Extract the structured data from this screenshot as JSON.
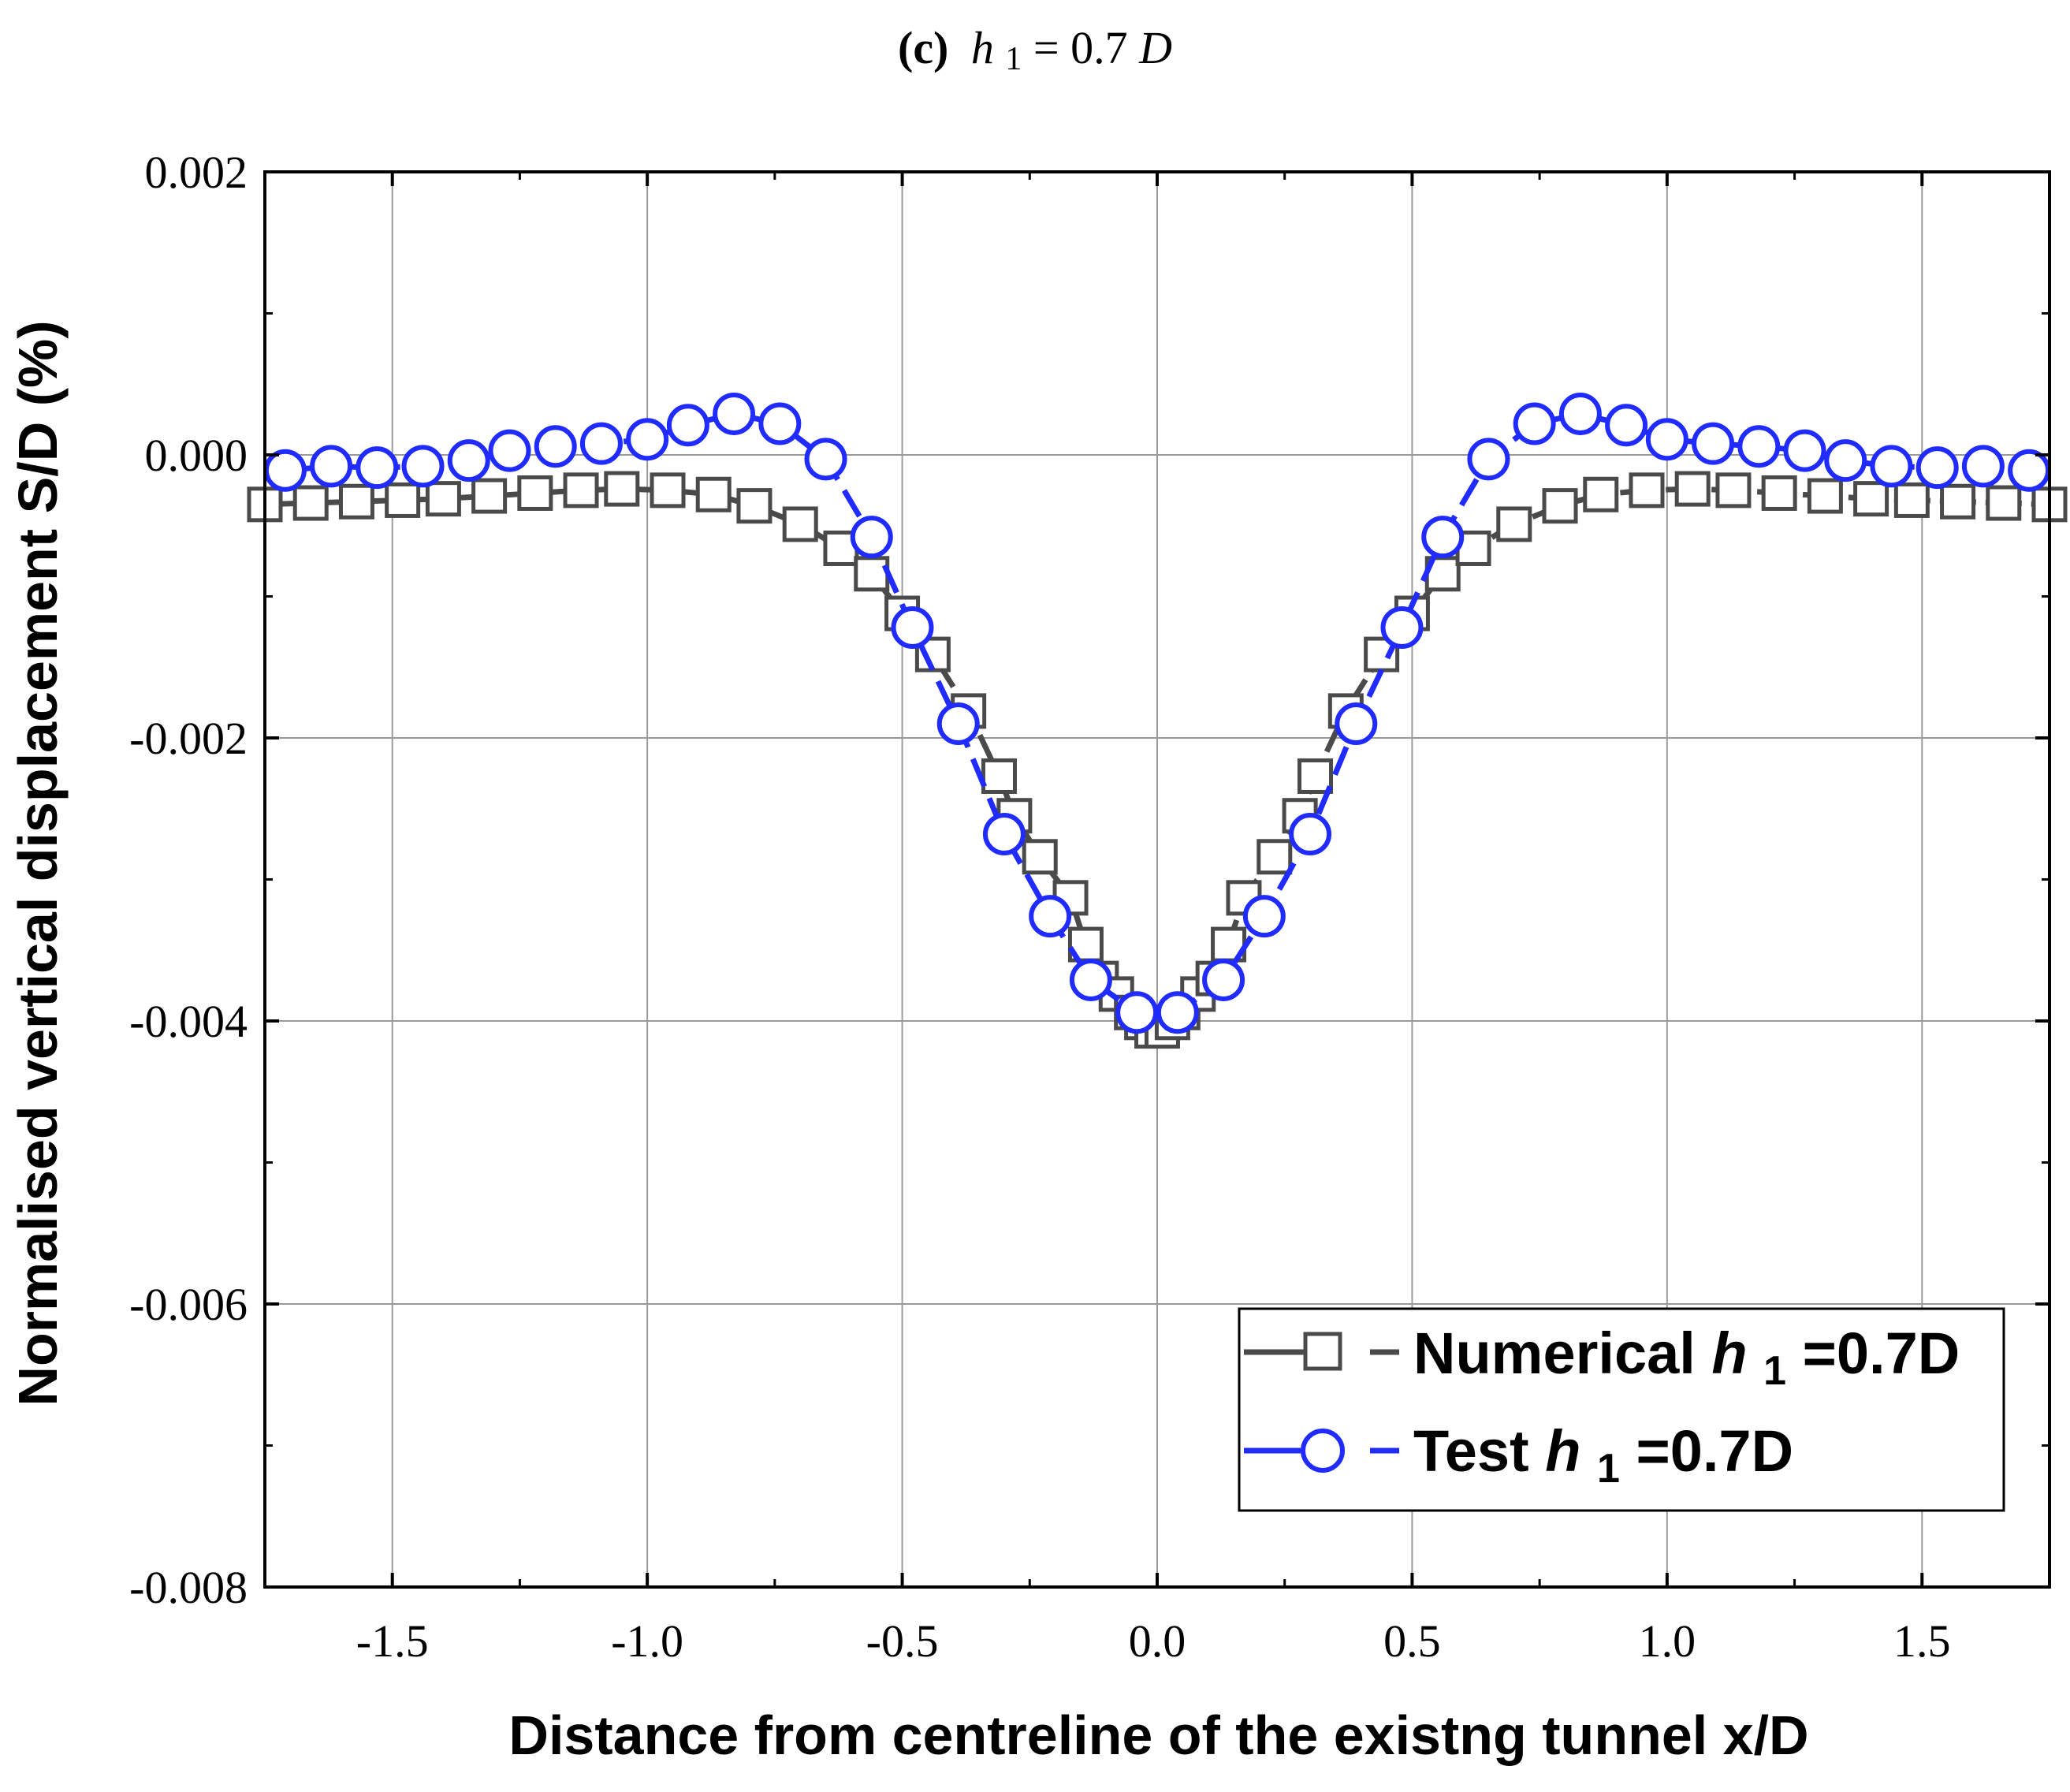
{
  "chart_data": {
    "type": "line",
    "title": {
      "label": "(c)",
      "variable": "h",
      "subscript": "1",
      "equals": " = 0.7",
      "unit": "D"
    },
    "xlabel": "Distance from centreline of the existng tunnel x/D",
    "ylabel": "Normalised vertical displacement S/D (%)",
    "xlim": [
      -1.75,
      1.75
    ],
    "ylim": [
      -0.008,
      0.002
    ],
    "xticks": [
      -1.5,
      -1.0,
      -0.5,
      0.0,
      0.5,
      1.0,
      1.5
    ],
    "xtick_labels": [
      "-1.5",
      "-1.0",
      "-0.5",
      "0.0",
      "0.5",
      "1.0",
      "1.5"
    ],
    "yticks": [
      0.002,
      0.0,
      -0.002,
      -0.004,
      -0.006,
      -0.008
    ],
    "ytick_labels": [
      "0.002",
      "0.000",
      "-0.002",
      "-0.004",
      "-0.006",
      "-0.008"
    ],
    "grid": true,
    "legend_position": "bottom-right",
    "series": [
      {
        "name": "Numerical",
        "legend_prefix": "Numerical ",
        "legend_var": "h",
        "legend_sub": "1",
        "legend_suffix": "=0.7D",
        "marker": "square",
        "color": "#4a4a4a",
        "x": [
          -1.75,
          -1.66,
          -1.57,
          -1.48,
          -1.4,
          -1.31,
          -1.22,
          -1.13,
          -1.05,
          -0.96,
          -0.87,
          -0.79,
          -0.7,
          -0.62,
          -0.56,
          -0.5,
          -0.44,
          -0.37,
          -0.31,
          -0.28,
          -0.23,
          -0.17,
          -0.14,
          -0.11,
          -0.08,
          -0.05,
          -0.03,
          -0.01,
          0.01,
          0.03,
          0.05,
          0.08,
          0.11,
          0.14,
          0.17,
          0.23,
          0.28,
          0.31,
          0.37,
          0.44,
          0.5,
          0.56,
          0.62,
          0.7,
          0.79,
          0.87,
          0.96,
          1.05,
          1.13,
          1.22,
          1.31,
          1.4,
          1.48,
          1.57,
          1.66,
          1.75
        ],
        "y": [
          -0.00035,
          -0.00034,
          -0.00033,
          -0.00032,
          -0.00031,
          -0.00029,
          -0.00027,
          -0.00025,
          -0.00024,
          -0.00025,
          -0.00028,
          -0.00036,
          -0.00049,
          -0.00066,
          -0.00084,
          -0.00112,
          -0.00141,
          -0.00181,
          -0.00227,
          -0.00255,
          -0.00284,
          -0.00313,
          -0.00346,
          -0.0037,
          -0.00381,
          -0.00394,
          -0.00401,
          -0.00407,
          -0.00407,
          -0.00401,
          -0.00394,
          -0.00381,
          -0.0037,
          -0.00346,
          -0.00313,
          -0.00284,
          -0.00255,
          -0.00227,
          -0.00181,
          -0.00141,
          -0.00112,
          -0.00084,
          -0.00066,
          -0.00049,
          -0.00036,
          -0.00028,
          -0.00025,
          -0.00024,
          -0.00025,
          -0.00027,
          -0.00029,
          -0.00031,
          -0.00032,
          -0.00033,
          -0.00034,
          -0.00035
        ]
      },
      {
        "name": "Test",
        "legend_prefix": "Test ",
        "legend_var": "h",
        "legend_sub": "1",
        "legend_suffix": "=0.7D",
        "marker": "circle",
        "color": "#1f2bff",
        "x": [
          -1.71,
          -1.62,
          -1.53,
          -1.44,
          -1.35,
          -1.27,
          -1.18,
          -1.09,
          -1.0,
          -0.92,
          -0.83,
          -0.74,
          -0.65,
          -0.56,
          -0.48,
          -0.39,
          -0.3,
          -0.21,
          -0.13,
          -0.04,
          0.04,
          0.13,
          0.21,
          0.3,
          0.39,
          0.48,
          0.56,
          0.65,
          0.74,
          0.83,
          0.92,
          1.0,
          1.09,
          1.18,
          1.27,
          1.35,
          1.44,
          1.53,
          1.62,
          1.71
        ],
        "y": [
          -0.00011,
          -8e-05,
          -9e-05,
          -8e-05,
          -4e-05,
          3e-05,
          6e-05,
          8e-05,
          0.00011,
          0.00021,
          0.00029,
          0.00022,
          -3e-05,
          -0.00058,
          -0.00122,
          -0.0019,
          -0.00268,
          -0.00326,
          -0.00371,
          -0.00394,
          -0.00394,
          -0.00371,
          -0.00326,
          -0.00268,
          -0.0019,
          -0.00122,
          -0.00058,
          -3e-05,
          0.00022,
          0.00029,
          0.00021,
          0.00011,
          8e-05,
          6e-05,
          3e-05,
          -4e-05,
          -8e-05,
          -9e-05,
          -8e-05,
          -0.00011
        ]
      }
    ]
  }
}
